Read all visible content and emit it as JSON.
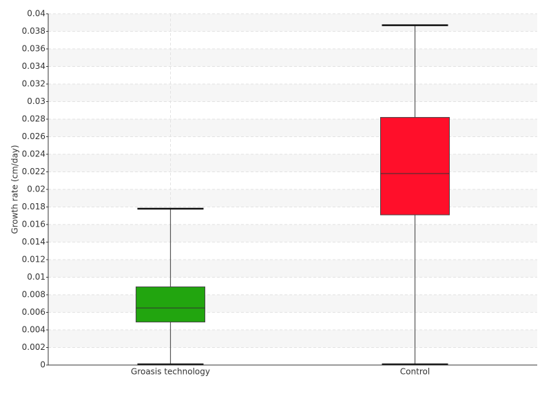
{
  "chart_data": {
    "type": "box",
    "y_label": "Growth rate (cm/day)",
    "categories": [
      "Groasis technology",
      "Control"
    ],
    "boxes": [
      {
        "min": 0,
        "q1": 0.0049,
        "median": 0.0065,
        "q3": 0.0089,
        "max": 0.0178,
        "color": "#22a50f"
      },
      {
        "min": 0,
        "q1": 0.0171,
        "median": 0.0218,
        "q3": 0.0282,
        "max": 0.0387,
        "color": "#ff0f2a"
      }
    ],
    "ylim": [
      0,
      0.04
    ],
    "yticks": [
      0,
      0.002,
      0.004,
      0.006,
      0.008,
      0.01,
      0.012,
      0.014,
      0.016,
      0.018,
      0.02,
      0.022,
      0.024,
      0.026,
      0.028,
      0.03,
      0.032,
      0.034,
      0.036,
      0.038,
      0.04
    ],
    "grid": true
  }
}
